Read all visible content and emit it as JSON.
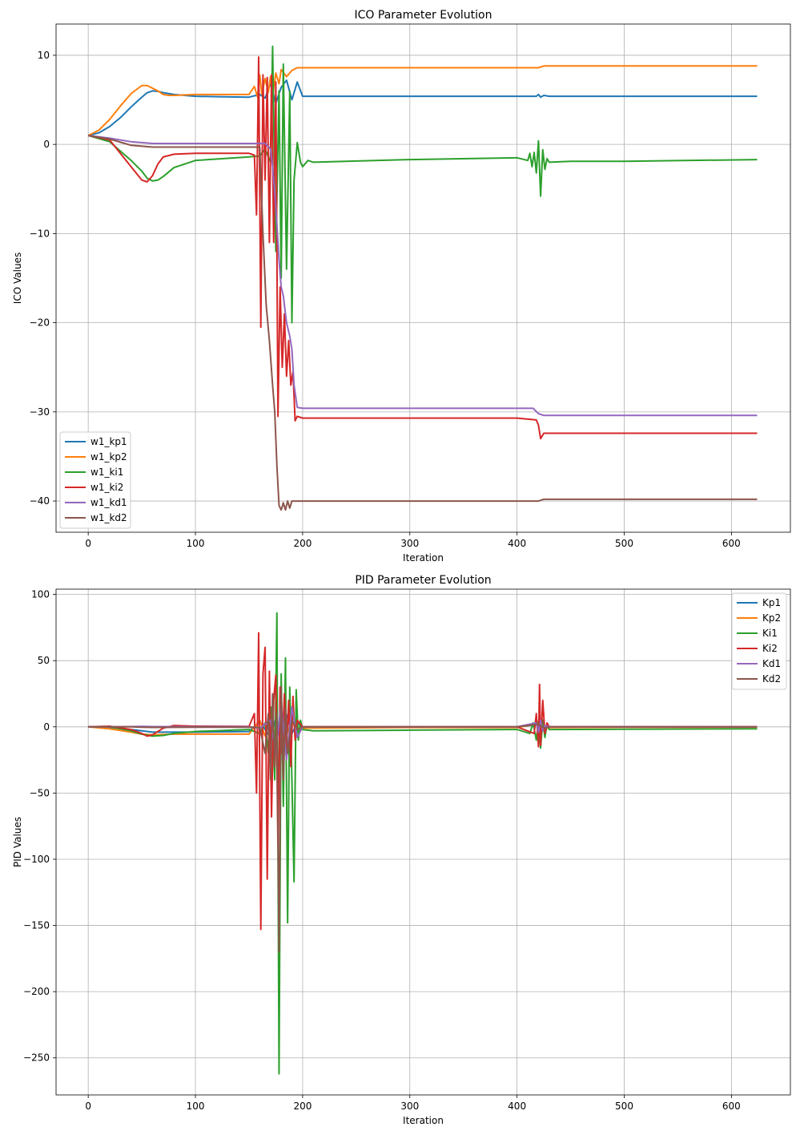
{
  "chart_data": [
    {
      "type": "line",
      "title": "ICO Parameter Evolution",
      "xlabel": "Iteration",
      "ylabel": "ICO Values",
      "xlim": [
        -30,
        655
      ],
      "ylim": [
        -43.5,
        13.5
      ],
      "xticks": [
        0,
        100,
        200,
        300,
        400,
        500,
        600
      ],
      "yticks": [
        10,
        0,
        -10,
        -20,
        -30,
        -40
      ],
      "grid": true,
      "legend": "lower-left",
      "series": [
        {
          "name": "w1_kp1",
          "color": "#1f77b4",
          "x": [
            0,
            10,
            20,
            30,
            40,
            50,
            55,
            60,
            65,
            70,
            80,
            90,
            100,
            120,
            150,
            160,
            165,
            170,
            175,
            180,
            185,
            190,
            195,
            200,
            250,
            300,
            400,
            418,
            420,
            422,
            425,
            430,
            500,
            624
          ],
          "y": [
            1.0,
            1.3,
            2.0,
            3.0,
            4.2,
            5.3,
            5.8,
            6.0,
            5.95,
            5.8,
            5.6,
            5.5,
            5.4,
            5.35,
            5.3,
            5.6,
            5.2,
            6.8,
            4.6,
            6.4,
            7.2,
            5.0,
            7.0,
            5.4,
            5.4,
            5.4,
            5.4,
            5.4,
            5.6,
            5.3,
            5.5,
            5.4,
            5.4,
            5.4
          ]
        },
        {
          "name": "w1_kp2",
          "color": "#ff7f0e",
          "x": [
            0,
            10,
            20,
            30,
            40,
            50,
            55,
            60,
            65,
            70,
            75,
            80,
            100,
            150,
            155,
            158,
            160,
            162,
            165,
            168,
            170,
            172,
            175,
            178,
            180,
            185,
            190,
            195,
            200,
            300,
            400,
            420,
            425,
            500,
            624
          ],
          "y": [
            1.0,
            1.6,
            2.8,
            4.3,
            5.7,
            6.6,
            6.6,
            6.3,
            6.0,
            5.6,
            5.5,
            5.5,
            5.6,
            5.6,
            6.5,
            5.3,
            7.8,
            5.6,
            7.4,
            5.8,
            7.6,
            5.4,
            8.0,
            6.8,
            8.4,
            7.6,
            8.3,
            8.6,
            8.6,
            8.6,
            8.6,
            8.6,
            8.8,
            8.8,
            8.8
          ]
        },
        {
          "name": "w1_ki1",
          "color": "#2ca02c",
          "x": [
            0,
            20,
            40,
            50,
            55,
            60,
            65,
            70,
            80,
            100,
            150,
            160,
            165,
            170,
            172,
            175,
            178,
            180,
            182,
            185,
            188,
            190,
            192,
            195,
            198,
            200,
            205,
            210,
            300,
            400,
            410,
            412,
            414,
            416,
            418,
            420,
            422,
            424,
            426,
            428,
            430,
            450,
            500,
            624
          ],
          "y": [
            1.0,
            0.3,
            -1.8,
            -3.0,
            -3.8,
            -4.1,
            -4.0,
            -3.6,
            -2.6,
            -1.8,
            -1.4,
            -1.3,
            -0.5,
            -2.0,
            11.0,
            -12.0,
            6.0,
            -15.0,
            9.0,
            -14.0,
            6.0,
            -20.0,
            -4.0,
            0.2,
            -2.0,
            -2.5,
            -1.8,
            -2.0,
            -1.7,
            -1.5,
            -1.8,
            -1.0,
            -2.5,
            -0.9,
            -3.2,
            0.4,
            -5.8,
            -0.6,
            -2.8,
            -1.6,
            -2.0,
            -1.9,
            -1.9,
            -1.7
          ]
        },
        {
          "name": "w1_ki2",
          "color": "#d62728",
          "x": [
            0,
            20,
            40,
            50,
            55,
            60,
            65,
            70,
            80,
            100,
            150,
            155,
            157,
            159,
            161,
            163,
            165,
            167,
            169,
            171,
            173,
            175,
            177,
            179,
            181,
            183,
            185,
            187,
            189,
            191,
            193,
            195,
            200,
            300,
            400,
            418,
            420,
            422,
            425,
            430,
            500,
            624
          ],
          "y": [
            1.0,
            0.5,
            -2.5,
            -4.0,
            -4.2,
            -3.5,
            -2.2,
            -1.4,
            -1.1,
            -1.0,
            -1.0,
            -1.2,
            -7.9,
            9.8,
            -20.5,
            7.8,
            -4.0,
            7.5,
            -11.0,
            7.8,
            -11.0,
            7.0,
            -30.5,
            -16.0,
            -25.0,
            -19.0,
            -26.0,
            -22.0,
            -27.0,
            -25.5,
            -31.0,
            -30.5,
            -30.7,
            -30.7,
            -30.7,
            -30.9,
            -31.5,
            -33.0,
            -32.4,
            -32.4,
            -32.4,
            -32.4
          ]
        },
        {
          "name": "w1_kd1",
          "color": "#9467bd",
          "x": [
            0,
            20,
            40,
            50,
            60,
            70,
            100,
            150,
            165,
            170,
            172,
            175,
            178,
            180,
            182,
            185,
            188,
            190,
            192,
            195,
            200,
            300,
            400,
            415,
            420,
            425,
            430,
            500,
            624
          ],
          "y": [
            1.0,
            0.7,
            0.3,
            0.2,
            0.1,
            0.1,
            0.1,
            0.1,
            0.1,
            -0.5,
            -2.5,
            -7.0,
            -13.0,
            -16.0,
            -17.0,
            -20.0,
            -21.5,
            -23.0,
            -27.0,
            -29.5,
            -29.6,
            -29.6,
            -29.6,
            -29.6,
            -30.2,
            -30.4,
            -30.4,
            -30.4,
            -30.4
          ]
        },
        {
          "name": "w1_kd2",
          "color": "#8c564b",
          "x": [
            0,
            20,
            40,
            50,
            60,
            70,
            100,
            150,
            160,
            163,
            166,
            169,
            172,
            174,
            176,
            178,
            180,
            182,
            184,
            186,
            188,
            190,
            195,
            200,
            300,
            400,
            420,
            425,
            500,
            624
          ],
          "y": [
            1.0,
            0.6,
            -0.1,
            -0.2,
            -0.3,
            -0.3,
            -0.3,
            -0.3,
            -0.3,
            -10.0,
            -18.0,
            -22.0,
            -27.0,
            -30.0,
            -36.0,
            -40.5,
            -41.0,
            -40.2,
            -41.0,
            -40.0,
            -40.8,
            -40.0,
            -40.0,
            -40.0,
            -40.0,
            -40.0,
            -40.0,
            -39.8,
            -39.8,
            -39.8
          ]
        }
      ]
    },
    {
      "type": "line",
      "title": "PID Parameter Evolution",
      "xlabel": "Iteration",
      "ylabel": "PID Values",
      "xlim": [
        -30,
        655
      ],
      "ylim": [
        -278,
        104
      ],
      "xticks": [
        0,
        100,
        200,
        300,
        400,
        500,
        600
      ],
      "yticks": [
        100,
        50,
        0,
        -50,
        -100,
        -150,
        -200,
        -250
      ],
      "grid": true,
      "legend": "upper-right",
      "series": [
        {
          "name": "Kp1",
          "color": "#1f77b4",
          "x": [
            0,
            20,
            40,
            50,
            60,
            80,
            100,
            150,
            160,
            170,
            175,
            180,
            185,
            190,
            195,
            200,
            300,
            400,
            420,
            425,
            430,
            500,
            624
          ],
          "y": [
            0,
            -0.5,
            -2.0,
            -3.0,
            -4.0,
            -4.0,
            -4.0,
            -3.5,
            4.0,
            -8.0,
            6.0,
            -7.0,
            9.0,
            -5.0,
            3.0,
            -0.5,
            -0.3,
            -0.2,
            2.0,
            -1.5,
            -0.2,
            -0.1,
            -0.1
          ]
        },
        {
          "name": "Kp2",
          "color": "#ff7f0e",
          "x": [
            0,
            20,
            40,
            50,
            60,
            80,
            100,
            150,
            160,
            165,
            170,
            175,
            180,
            185,
            190,
            195,
            200,
            300,
            400,
            420,
            425,
            430,
            500,
            624
          ],
          "y": [
            0,
            -1.5,
            -4.0,
            -5.5,
            -6.0,
            -5.5,
            -5.5,
            -5.5,
            5.0,
            -7.0,
            8.0,
            -9.0,
            6.0,
            -6.0,
            4.0,
            -3.0,
            -1.0,
            -0.5,
            -0.5,
            2.5,
            -2.0,
            -0.5,
            -0.3,
            -0.3
          ]
        },
        {
          "name": "Ki1",
          "color": "#2ca02c",
          "x": [
            0,
            20,
            40,
            50,
            60,
            70,
            80,
            100,
            150,
            160,
            165,
            168,
            171,
            174,
            176,
            178,
            180,
            182,
            184,
            186,
            188,
            190,
            192,
            194,
            196,
            198,
            200,
            210,
            300,
            400,
            412,
            415,
            418,
            420,
            422,
            424,
            426,
            428,
            430,
            500,
            624
          ],
          "y": [
            0,
            0,
            -3.0,
            -5.5,
            -7.0,
            -6.5,
            -5.0,
            -3.5,
            -2.0,
            -5.0,
            3.0,
            -20.0,
            15.0,
            -40.0,
            86.0,
            -262.0,
            40.0,
            -60.0,
            52.0,
            -148.0,
            30.0,
            -40.0,
            -117.0,
            28.0,
            -10.0,
            5.0,
            -2.0,
            -3.0,
            -2.5,
            -2.0,
            -5.0,
            3.0,
            -10.0,
            4.0,
            -16.0,
            5.0,
            -8.0,
            2.0,
            -2.0,
            -1.8,
            -1.5
          ]
        },
        {
          "name": "Ki2",
          "color": "#d62728",
          "x": [
            0,
            20,
            40,
            50,
            55,
            60,
            70,
            80,
            100,
            150,
            155,
            157,
            159,
            161,
            163,
            165,
            167,
            169,
            171,
            173,
            175,
            177,
            179,
            181,
            183,
            185,
            187,
            189,
            191,
            193,
            195,
            200,
            300,
            400,
            416,
            418,
            420,
            421,
            422,
            424,
            426,
            428,
            430,
            500,
            624
          ],
          "y": [
            0,
            0.5,
            -2.0,
            -5.0,
            -7.0,
            -6.0,
            -1.0,
            1.0,
            0.5,
            0.3,
            10.0,
            -50.0,
            71.0,
            -153.0,
            40.0,
            60.0,
            -115.0,
            42.0,
            -68.0,
            20.0,
            39.0,
            -90.0,
            30.0,
            -20.0,
            25.0,
            -15.0,
            20.0,
            -30.0,
            23.0,
            -10.0,
            5.0,
            0.0,
            0.0,
            0.0,
            -5.0,
            10.0,
            -15.0,
            32.0,
            -14.0,
            20.0,
            -5.0,
            3.0,
            0.0,
            0.0,
            0.0
          ]
        },
        {
          "name": "Kd1",
          "color": "#9467bd",
          "x": [
            0,
            20,
            40,
            50,
            60,
            100,
            150,
            160,
            170,
            175,
            180,
            185,
            190,
            195,
            200,
            300,
            400,
            418,
            420,
            422,
            424,
            426,
            430,
            500,
            624
          ],
          "y": [
            0,
            0,
            0.2,
            0.3,
            0.2,
            0.1,
            0.1,
            -1.0,
            5.0,
            -20.0,
            18.0,
            -25.0,
            15.0,
            -8.0,
            0.0,
            0.0,
            0.0,
            3.0,
            -4.0,
            5.0,
            -3.0,
            1.0,
            0.0,
            0.0,
            0.0
          ]
        },
        {
          "name": "Kd2",
          "color": "#8c564b",
          "x": [
            0,
            20,
            40,
            50,
            60,
            100,
            150,
            160,
            165,
            168,
            170,
            172,
            174,
            176,
            178,
            180,
            182,
            184,
            186,
            190,
            195,
            200,
            300,
            400,
            420,
            425,
            430,
            500,
            624
          ],
          "y": [
            0,
            0,
            0,
            -0.3,
            -0.4,
            -0.3,
            -0.3,
            -0.5,
            -20.0,
            10.0,
            -40.0,
            25.0,
            -30.0,
            10.0,
            -170.0,
            30.0,
            -40.0,
            15.0,
            -20.0,
            5.0,
            -2.0,
            0.0,
            0.0,
            0.0,
            2.0,
            -1.0,
            0.0,
            0.0,
            0.0
          ]
        }
      ]
    }
  ]
}
